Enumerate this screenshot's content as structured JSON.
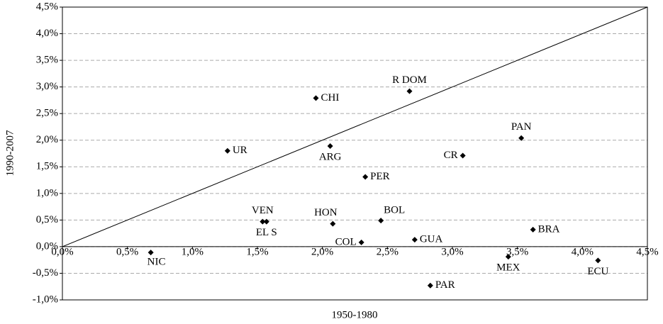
{
  "chart_data": {
    "type": "scatter",
    "x_label": "1950-1980",
    "y_label": "1990-2007",
    "labels": [
      "NIC",
      "UR",
      "VEN",
      "EL S",
      "CHI",
      "ARG",
      "HON",
      "COL",
      "PER",
      "BOL",
      "R DOM",
      "GUA",
      "PAR",
      "CR",
      "MEX",
      "PAN",
      "BRA",
      "ECU"
    ],
    "x": [
      0.68,
      1.27,
      1.54,
      1.57,
      1.95,
      2.06,
      2.08,
      2.3,
      2.33,
      2.45,
      2.67,
      2.71,
      2.83,
      3.08,
      3.43,
      3.53,
      3.62,
      4.12
    ],
    "values": [
      -0.11,
      1.8,
      0.47,
      0.47,
      2.79,
      1.89,
      0.43,
      0.08,
      1.31,
      0.49,
      2.92,
      0.13,
      -0.73,
      1.71,
      -0.19,
      2.04,
      0.32,
      -0.26
    ],
    "color": "#000000",
    "diagonal": {
      "x": [
        0,
        4.5
      ],
      "values": [
        0,
        4.5
      ]
    },
    "xlim": [
      0,
      4.5
    ],
    "ylim": [
      -1,
      4.5
    ],
    "xticks": [
      {
        "value": 0,
        "label": "0,0%"
      },
      {
        "value": 0.5,
        "label": "0,5%"
      },
      {
        "value": 1,
        "label": "1,0%"
      },
      {
        "value": 1.5,
        "label": "1,5%"
      },
      {
        "value": 2,
        "label": "2,0%"
      },
      {
        "value": 2.5,
        "label": "2,5%"
      },
      {
        "value": 3,
        "label": "3,0%"
      },
      {
        "value": 3.5,
        "label": "3,5%"
      },
      {
        "value": 4,
        "label": "4,0%"
      },
      {
        "value": 4.5,
        "label": "4,5%"
      }
    ],
    "yticks": [
      {
        "value": -1,
        "label": "-1,0%"
      },
      {
        "value": -0.5,
        "label": "-0,5%"
      },
      {
        "value": 0,
        "label": "0,0%"
      },
      {
        "value": 0.5,
        "label": "0,5%"
      },
      {
        "value": 1,
        "label": "1,0%"
      },
      {
        "value": 1.5,
        "label": "1,5%"
      },
      {
        "value": 2,
        "label": "2,0%"
      },
      {
        "value": 2.5,
        "label": "2,5%"
      },
      {
        "value": 3,
        "label": "3,0%"
      },
      {
        "value": 3.5,
        "label": "3,5%"
      },
      {
        "value": 4,
        "label": "4,0%"
      },
      {
        "value": 4.5,
        "label": "4,5%"
      }
    ],
    "grid": true
  }
}
